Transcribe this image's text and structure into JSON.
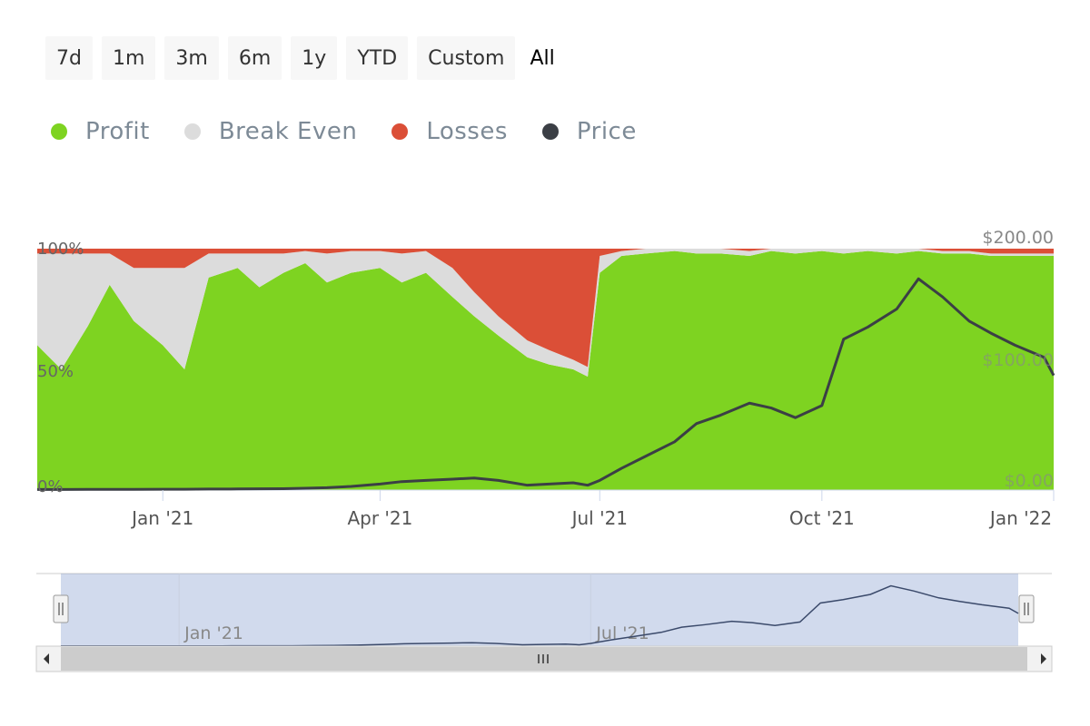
{
  "range_selector": {
    "buttons": [
      "7d",
      "1m",
      "3m",
      "6m",
      "1y",
      "YTD",
      "Custom",
      "All"
    ],
    "active": "All"
  },
  "legend": [
    {
      "label": "Profit",
      "color": "#7ed321"
    },
    {
      "label": "Break Even",
      "color": "#dcdcdc"
    },
    {
      "label": "Losses",
      "color": "#db4f37"
    },
    {
      "label": "Price",
      "color": "#3b3f45"
    }
  ],
  "chart_data": {
    "type": "area",
    "stacked_percent": true,
    "x": [
      "2020-11-10",
      "2020-11-20",
      "2020-12-01",
      "2020-12-10",
      "2020-12-20",
      "2021-01-01",
      "2021-01-10",
      "2021-01-20",
      "2021-02-01",
      "2021-02-10",
      "2021-02-20",
      "2021-03-01",
      "2021-03-10",
      "2021-03-20",
      "2021-04-01",
      "2021-04-10",
      "2021-04-20",
      "2021-05-01",
      "2021-05-10",
      "2021-05-20",
      "2021-06-01",
      "2021-06-10",
      "2021-06-20",
      "2021-06-26",
      "2021-07-01",
      "2021-07-10",
      "2021-07-20",
      "2021-08-01",
      "2021-08-10",
      "2021-08-20",
      "2021-09-01",
      "2021-09-10",
      "2021-09-20",
      "2021-10-01",
      "2021-10-10",
      "2021-10-20",
      "2021-11-01",
      "2021-11-10",
      "2021-11-20",
      "2021-12-01",
      "2021-12-10",
      "2021-12-20",
      "2022-01-01",
      "2022-01-05"
    ],
    "series": [
      {
        "name": "Profit",
        "values": [
          60,
          50,
          68,
          85,
          70,
          60,
          50,
          88,
          92,
          84,
          90,
          94,
          86,
          90,
          92,
          86,
          90,
          80,
          72,
          64,
          55,
          52,
          50,
          47,
          90,
          97,
          98,
          99,
          98,
          98,
          97,
          99,
          98,
          99,
          98,
          99,
          98,
          99,
          98,
          98,
          97,
          97,
          97,
          97
        ]
      },
      {
        "name": "Break Even",
        "values": [
          38,
          48,
          30,
          13,
          22,
          32,
          42,
          10,
          6,
          14,
          8,
          5,
          12,
          9,
          7,
          12,
          9,
          12,
          10,
          8,
          7,
          6,
          4,
          4,
          7,
          2,
          2,
          1,
          2,
          2,
          2,
          1,
          2,
          1,
          2,
          1,
          2,
          1,
          1,
          1,
          1,
          1,
          1,
          1
        ]
      },
      {
        "name": "Losses",
        "values": [
          2,
          2,
          2,
          2,
          8,
          8,
          8,
          2,
          2,
          2,
          2,
          1,
          2,
          1,
          1,
          2,
          1,
          8,
          18,
          28,
          38,
          42,
          46,
          49,
          3,
          1,
          0,
          0,
          0,
          0,
          1,
          0,
          0,
          0,
          0,
          0,
          0,
          0,
          1,
          1,
          2,
          2,
          2,
          2
        ]
      },
      {
        "name": "Price",
        "values": [
          0.5,
          0.5,
          0.6,
          0.6,
          0.6,
          0.7,
          0.7,
          0.8,
          0.9,
          1.0,
          1.1,
          1.5,
          2,
          3,
          5,
          7,
          8,
          9,
          10,
          8,
          4,
          5,
          6,
          4,
          8,
          18,
          28,
          40,
          55,
          62,
          72,
          68,
          60,
          70,
          125,
          135,
          150,
          175,
          160,
          140,
          130,
          120,
          110,
          95
        ]
      }
    ],
    "y_left": {
      "ticks": [
        "0%",
        "50%",
        "100%"
      ],
      "range": [
        0,
        100
      ]
    },
    "y_right": {
      "ticks": [
        "$0.00",
        "$100.00",
        "$200.00"
      ],
      "range": [
        0,
        200
      ]
    },
    "x_ticks": [
      "Jan '21",
      "Apr '21",
      "Jul '21",
      "Oct '21",
      "Jan '22"
    ],
    "navigator_ticks": [
      "Jan '21",
      "Jul '21"
    ]
  }
}
